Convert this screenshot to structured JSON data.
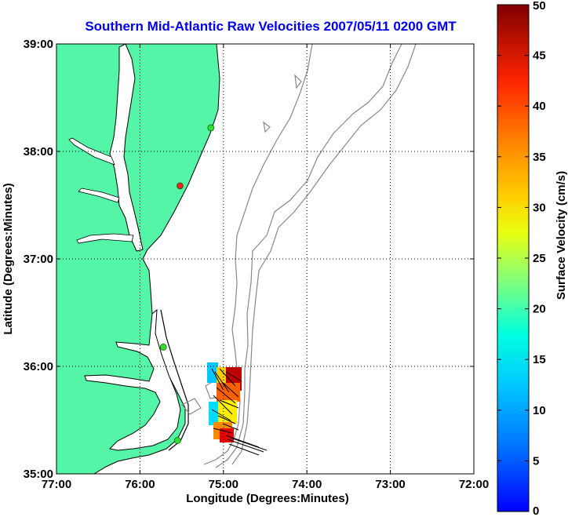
{
  "title": "Southern Mid-Atlantic Raw Velocities 2007/05/11 0200 GMT",
  "map": {
    "xlabel": "Longitude (Degrees:Minutes)",
    "ylabel": "Latitude (Degrees:Minutes)",
    "x_ticks": [
      "77:00",
      "76:00",
      "75:00",
      "74:00",
      "73:00",
      "72:00"
    ],
    "y_ticks": [
      "39:00",
      "38:00",
      "37:00",
      "36:00",
      "35:00"
    ],
    "lon_range": [
      -77,
      -72
    ],
    "lat_range": [
      35,
      39
    ],
    "land_color": "#55f5a8",
    "water_color": "#ffffff",
    "coast_color": "#000000",
    "bathymetry_color": "#888888",
    "grid": "dotted"
  },
  "colorbar": {
    "label": "Surface Velocity (cm/s)",
    "ticks": [
      "50",
      "45",
      "40",
      "35",
      "30",
      "25",
      "20",
      "15",
      "10",
      "5",
      "0"
    ],
    "range": [
      0,
      50
    ],
    "colormap": "jet"
  },
  "sites": [
    {
      "lon": -75.15,
      "lat": 38.22,
      "color": "#33dd33"
    },
    {
      "lon": -75.52,
      "lat": 37.68,
      "color": "#ee2222"
    },
    {
      "lon": -75.72,
      "lat": 36.18,
      "color": "#33dd33"
    },
    {
      "lon": -75.55,
      "lat": 35.31,
      "color": "#33dd33"
    }
  ]
}
